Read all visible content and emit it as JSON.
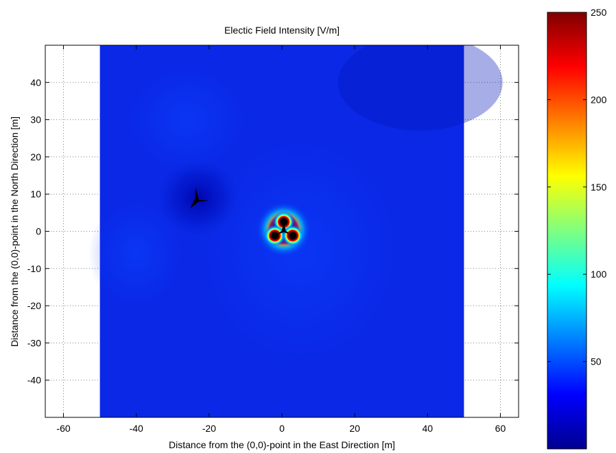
{
  "chart_data": {
    "type": "heatmap",
    "title": "Electic Field Intensity [V/m]",
    "xlabel": "Distance from the (0,0)-point in the East Direction [m]",
    "ylabel": "Distance from the (0,0)-point in the North Direction [m]",
    "xlim": [
      -65,
      65
    ],
    "ylim": [
      -50,
      50
    ],
    "x_ticks": [
      -60,
      -40,
      -20,
      0,
      20,
      40,
      60
    ],
    "y_ticks": [
      -40,
      -30,
      -20,
      -10,
      0,
      10,
      20,
      30,
      40
    ],
    "grid": true,
    "data_extent": {
      "x": [
        -50,
        50
      ],
      "y": [
        -50,
        50
      ]
    },
    "background_level": 15,
    "hotspots": [
      {
        "x": 0.5,
        "y": 0.5,
        "peak": 250
      },
      {
        "x": -23,
        "y": 9,
        "peak": 5
      }
    ],
    "colorbar": {
      "min": 0,
      "max": 250,
      "ticks": [
        50,
        100,
        150,
        200,
        250
      ],
      "colormap": "jet"
    }
  }
}
